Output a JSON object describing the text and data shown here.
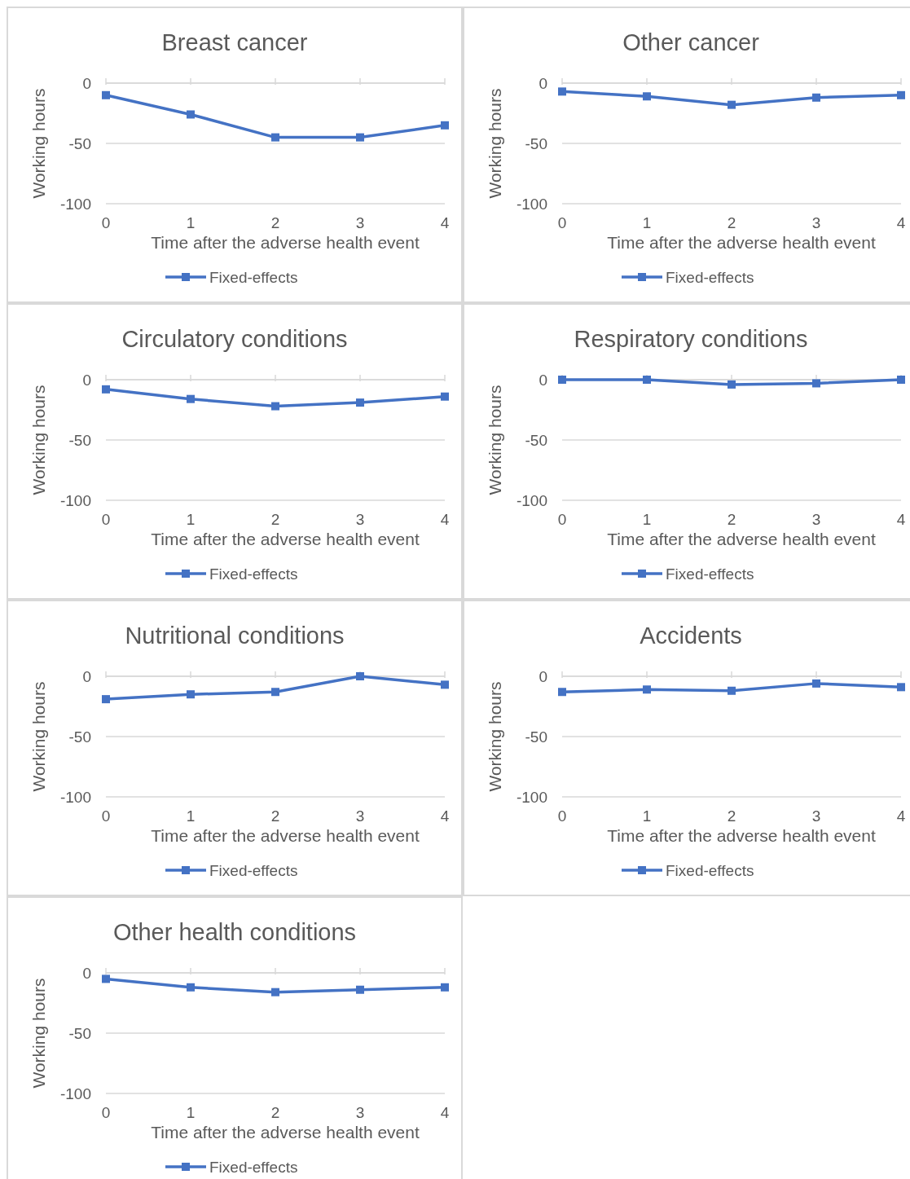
{
  "chart_data": [
    {
      "type": "line",
      "title": "Breast cancer",
      "xlabel": "Time after the adverse health event",
      "ylabel": "Working hours",
      "categories": [
        "0",
        "1",
        "2",
        "3",
        "4"
      ],
      "ylim": [
        -100,
        0
      ],
      "yticks": [
        -100,
        -50,
        0
      ],
      "grid": "y",
      "legend": "bottom",
      "marker": "square",
      "line_style": "solid",
      "series": [
        {
          "name": "Fixed-effects",
          "color": "#4472c4",
          "values": [
            -10,
            -26,
            -45,
            -45,
            -35
          ]
        }
      ]
    },
    {
      "type": "line",
      "title": "Other cancer",
      "xlabel": "Time after the adverse health event",
      "ylabel": "Working hours",
      "categories": [
        "0",
        "1",
        "2",
        "3",
        "4"
      ],
      "ylim": [
        -100,
        0
      ],
      "yticks": [
        -100,
        -50,
        0
      ],
      "grid": "y",
      "legend": "bottom",
      "marker": "square",
      "line_style": "solid",
      "series": [
        {
          "name": "Fixed-effects",
          "color": "#4472c4",
          "values": [
            -7,
            -11,
            -18,
            -12,
            -10
          ]
        }
      ]
    },
    {
      "type": "line",
      "title": "Circulatory conditions",
      "xlabel": "Time after the adverse health event",
      "ylabel": "Working hours",
      "categories": [
        "0",
        "1",
        "2",
        "3",
        "4"
      ],
      "ylim": [
        -100,
        0
      ],
      "yticks": [
        -100,
        -50,
        0
      ],
      "grid": "y",
      "legend": "bottom",
      "marker": "square",
      "line_style": "solid",
      "series": [
        {
          "name": "Fixed-effects",
          "color": "#4472c4",
          "values": [
            -8,
            -16,
            -22,
            -19,
            -14
          ]
        }
      ]
    },
    {
      "type": "line",
      "title": "Respiratory conditions",
      "xlabel": "Time after the adverse health event",
      "ylabel": "Working hours",
      "categories": [
        "0",
        "1",
        "2",
        "3",
        "4"
      ],
      "ylim": [
        -100,
        0
      ],
      "yticks": [
        -100,
        -50,
        0
      ],
      "grid": "y",
      "legend": "bottom",
      "marker": "square",
      "line_style": "solid",
      "series": [
        {
          "name": "Fixed-effects",
          "color": "#4472c4",
          "values": [
            0,
            0,
            -4,
            -3,
            0
          ]
        }
      ]
    },
    {
      "type": "line",
      "title": "Nutritional conditions",
      "xlabel": "Time after the adverse health event",
      "ylabel": "Working hours",
      "categories": [
        "0",
        "1",
        "2",
        "3",
        "4"
      ],
      "ylim": [
        -100,
        0
      ],
      "yticks": [
        -100,
        -50,
        0
      ],
      "grid": "y",
      "legend": "bottom",
      "marker": "square",
      "line_style": "solid",
      "series": [
        {
          "name": "Fixed-effects",
          "color": "#4472c4",
          "values": [
            -19,
            -15,
            -13,
            0,
            -7
          ]
        }
      ]
    },
    {
      "type": "line",
      "title": "Accidents",
      "xlabel": "Time after the adverse health event",
      "ylabel": "Working hours",
      "categories": [
        "0",
        "1",
        "2",
        "3",
        "4"
      ],
      "ylim": [
        -100,
        0
      ],
      "yticks": [
        -100,
        -50,
        0
      ],
      "grid": "y",
      "legend": "bottom",
      "marker": "square",
      "line_style": "solid",
      "series": [
        {
          "name": "Fixed-effects",
          "color": "#4472c4",
          "values": [
            -13,
            -11,
            -12,
            -6,
            -9
          ]
        }
      ]
    },
    {
      "type": "line",
      "title": "Other health conditions",
      "xlabel": "Time after the adverse health event",
      "ylabel": "Working hours",
      "categories": [
        "0",
        "1",
        "2",
        "3",
        "4"
      ],
      "ylim": [
        -100,
        0
      ],
      "yticks": [
        -100,
        -50,
        0
      ],
      "grid": "y",
      "legend": "bottom",
      "marker": "square",
      "line_style": "solid",
      "series": [
        {
          "name": "Fixed-effects",
          "color": "#4472c4",
          "values": [
            -5,
            -12,
            -16,
            -14,
            -12
          ]
        }
      ]
    }
  ]
}
